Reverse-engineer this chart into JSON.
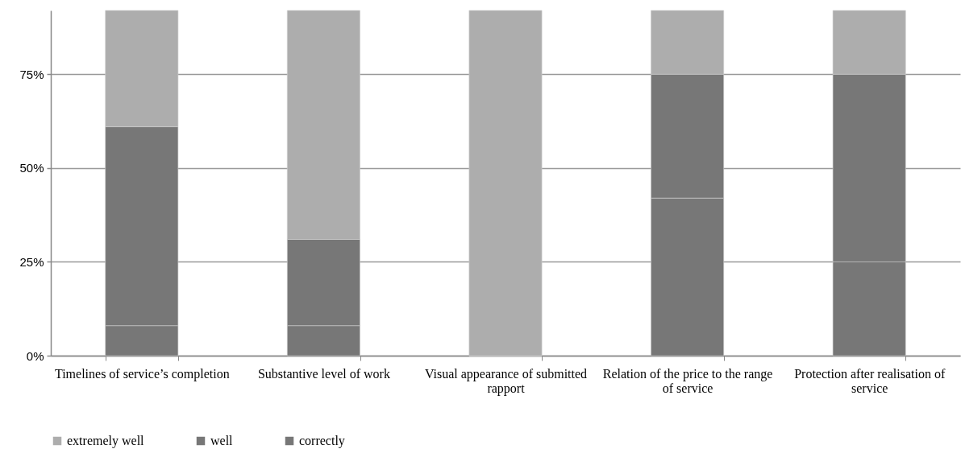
{
  "chart_data": {
    "type": "bar",
    "stacked": true,
    "categories": [
      "Timelines of service’s completion",
      "Substantive level of work",
      "Visual appearance of submitted rapport",
      "Relation of the price to the range of service",
      "Protection after realisation of service"
    ],
    "series": [
      {
        "name": "correctly",
        "color": "#777777",
        "values": [
          8,
          8,
          0,
          42,
          25
        ]
      },
      {
        "name": "well",
        "color": "#777777",
        "values": [
          53,
          23,
          0,
          33,
          50
        ]
      },
      {
        "name": "extremely well",
        "color": "#adadad",
        "values": [
          31,
          61,
          92,
          17,
          17
        ]
      }
    ],
    "ylim": [
      0,
      92
    ],
    "yticks": [
      {
        "value": 0,
        "label": "0%"
      },
      {
        "value": 25,
        "label": "25%"
      },
      {
        "value": 50,
        "label": "50%"
      },
      {
        "value": 75,
        "label": "75%"
      }
    ],
    "grid": "y",
    "legend": "bottom"
  }
}
